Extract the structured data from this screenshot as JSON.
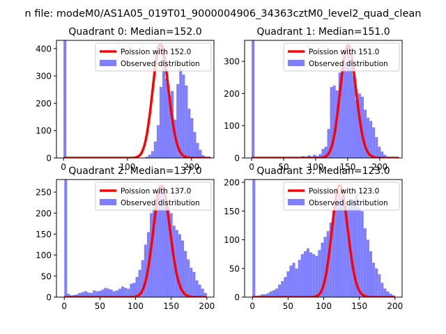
{
  "figure_title": "n file: modeM0/AS1A05_019T01_9000004906_34363cztM0_level2_quad_clean",
  "colors": {
    "histogram": "#8080ff",
    "poisson": "#ff0000",
    "axes": "#000000",
    "background": "#ffffff"
  },
  "chart_data": [
    {
      "type": "bar",
      "title": "Quadrant 0: Median=152.0",
      "xlabel": "",
      "ylabel": "",
      "xlim": [
        -11,
        235
      ],
      "ylim": [
        0,
        430
      ],
      "xticks": [
        0,
        100,
        200
      ],
      "yticks": [
        0,
        100,
        200,
        300,
        400
      ],
      "grid": false,
      "legend": {
        "placement": "upper-right",
        "entries": [
          "Poission with 152.0",
          "Observed distribution"
        ]
      },
      "series": [
        {
          "name": "Observed distribution",
          "kind": "histogram",
          "bin_width": 4.4,
          "bins": [
            [
              0,
              430
            ],
            [
              128,
              5
            ],
            [
              132.4,
              12
            ],
            [
              136.8,
              25
            ],
            [
              141.2,
              60
            ],
            [
              145.6,
              120
            ],
            [
              150,
              260
            ],
            [
              154.4,
              395
            ],
            [
              158.8,
              290
            ],
            [
              163.2,
              230
            ],
            [
              167.6,
              245
            ],
            [
              172,
              140
            ],
            [
              176.4,
              270
            ],
            [
              180.8,
              330
            ],
            [
              185.2,
              305
            ],
            [
              189.6,
              265
            ],
            [
              194,
              180
            ],
            [
              198.4,
              145
            ],
            [
              202.8,
              95
            ],
            [
              207.2,
              55
            ],
            [
              211.6,
              30
            ],
            [
              216,
              10
            ]
          ]
        },
        {
          "name": "Poission with 152.0",
          "kind": "poisson",
          "lambda": 152.0,
          "peak": 415,
          "x_range": [
            0,
            230
          ]
        }
      ]
    },
    {
      "type": "bar",
      "title": "Quadrant 1: Median=151.0",
      "xlabel": "",
      "ylabel": "",
      "xlim": [
        -11,
        235
      ],
      "ylim": [
        0,
        365
      ],
      "xticks": [
        0,
        50,
        100,
        150,
        200
      ],
      "yticks": [
        0,
        100,
        200,
        300
      ],
      "grid": false,
      "legend": {
        "placement": "upper-right",
        "entries": [
          "Poission with 151.0",
          "Observed distribution"
        ]
      },
      "series": [
        {
          "name": "Observed distribution",
          "kind": "histogram",
          "bin_width": 4.4,
          "bins": [
            [
              0,
              365
            ],
            [
              74,
              3
            ],
            [
              78.4,
              6
            ],
            [
              82.8,
              3
            ],
            [
              87.2,
              8
            ],
            [
              91.6,
              5
            ],
            [
              96,
              10
            ],
            [
              100.4,
              6
            ],
            [
              104.8,
              12
            ],
            [
              109.2,
              28
            ],
            [
              113.6,
              35
            ],
            [
              118,
              90
            ],
            [
              122.4,
              220
            ],
            [
              126.8,
              225
            ],
            [
              131.2,
              210
            ],
            [
              135.6,
              265
            ],
            [
              140,
              285
            ],
            [
              144.4,
              300
            ],
            [
              148.8,
              330
            ],
            [
              153.2,
              285
            ],
            [
              157.6,
              255
            ],
            [
              162,
              180
            ],
            [
              166.4,
              200
            ],
            [
              170.8,
              190
            ],
            [
              175.2,
              150
            ],
            [
              179.6,
              125
            ],
            [
              184,
              115
            ],
            [
              188.4,
              95
            ],
            [
              192.8,
              65
            ],
            [
              197.2,
              35
            ],
            [
              201.6,
              20
            ],
            [
              206,
              10
            ]
          ]
        },
        {
          "name": "Poission with 151.0",
          "kind": "poisson",
          "lambda": 151.0,
          "peak": 350,
          "x_range": [
            0,
            230
          ]
        }
      ]
    },
    {
      "type": "bar",
      "title": "Quadrant 2: Median=137.0",
      "xlabel": "",
      "ylabel": "",
      "xlim": [
        -11,
        210
      ],
      "ylim": [
        0,
        280
      ],
      "xticks": [
        0,
        50,
        100,
        150,
        200
      ],
      "yticks": [
        0,
        50,
        100,
        150,
        200,
        250
      ],
      "grid": false,
      "legend": {
        "placement": "upper-right",
        "entries": [
          "Poission with 137.0",
          "Observed distribution"
        ]
      },
      "series": [
        {
          "name": "Observed distribution",
          "kind": "histogram",
          "bin_width": 4.0,
          "bins": [
            [
              0,
              280
            ],
            [
              4,
              8
            ],
            [
              8,
              4
            ],
            [
              12,
              5
            ],
            [
              16,
              7
            ],
            [
              20,
              10
            ],
            [
              24,
              12
            ],
            [
              28,
              14
            ],
            [
              32,
              11
            ],
            [
              36,
              10
            ],
            [
              40,
              16
            ],
            [
              44,
              14
            ],
            [
              48,
              15
            ],
            [
              52,
              18
            ],
            [
              56,
              22
            ],
            [
              60,
              20
            ],
            [
              64,
              18
            ],
            [
              68,
              14
            ],
            [
              72,
              16
            ],
            [
              76,
              20
            ],
            [
              80,
              25
            ],
            [
              84,
              22
            ],
            [
              88,
              20
            ],
            [
              92,
              32
            ],
            [
              96,
              34
            ],
            [
              100,
              48
            ],
            [
              104,
              65
            ],
            [
              108,
              88
            ],
            [
              112,
              125
            ],
            [
              116,
              155
            ],
            [
              120,
              200
            ],
            [
              124,
              225
            ],
            [
              128,
              250
            ],
            [
              132,
              265
            ],
            [
              136,
              255
            ],
            [
              140,
              235
            ],
            [
              144,
              215
            ],
            [
              148,
              200
            ],
            [
              152,
              170
            ],
            [
              156,
              160
            ],
            [
              160,
              150
            ],
            [
              164,
              135
            ],
            [
              168,
              110
            ],
            [
              172,
              90
            ],
            [
              176,
              70
            ],
            [
              180,
              60
            ],
            [
              184,
              40
            ],
            [
              188,
              30
            ],
            [
              192,
              20
            ],
            [
              196,
              10
            ]
          ]
        },
        {
          "name": "Poission with 137.0",
          "kind": "poisson",
          "lambda": 137.0,
          "peak": 265,
          "x_range": [
            0,
            200
          ]
        }
      ]
    },
    {
      "type": "bar",
      "title": "Quadrant 3: Median=123.0",
      "xlabel": "",
      "ylabel": "",
      "xlim": [
        -11,
        210
      ],
      "ylim": [
        0,
        205
      ],
      "xticks": [
        0,
        50,
        100,
        150,
        200
      ],
      "yticks": [
        0,
        50,
        100,
        150,
        200
      ],
      "grid": false,
      "legend": {
        "placement": "upper-right",
        "entries": [
          "Poission with 123.0",
          "Observed distribution"
        ]
      },
      "series": [
        {
          "name": "Observed distribution",
          "kind": "histogram",
          "bin_width": 4.0,
          "bins": [
            [
              0,
              205
            ],
            [
              8,
              3
            ],
            [
              12,
              5
            ],
            [
              16,
              5
            ],
            [
              20,
              7
            ],
            [
              24,
              10
            ],
            [
              28,
              12
            ],
            [
              32,
              15
            ],
            [
              36,
              22
            ],
            [
              40,
              28
            ],
            [
              44,
              35
            ],
            [
              48,
              45
            ],
            [
              52,
              55
            ],
            [
              56,
              60
            ],
            [
              60,
              50
            ],
            [
              64,
              65
            ],
            [
              68,
              75
            ],
            [
              72,
              80
            ],
            [
              76,
              85
            ],
            [
              80,
              78
            ],
            [
              84,
              75
            ],
            [
              88,
              72
            ],
            [
              92,
              82
            ],
            [
              96,
              95
            ],
            [
              100,
              105
            ],
            [
              104,
              115
            ],
            [
              108,
              130
            ],
            [
              112,
              150
            ],
            [
              116,
              170
            ],
            [
              120,
              185
            ],
            [
              124,
              175
            ],
            [
              128,
              160
            ],
            [
              132,
              155
            ],
            [
              136,
              165
            ],
            [
              140,
              170
            ],
            [
              144,
              180
            ],
            [
              148,
              155
            ],
            [
              152,
              150
            ],
            [
              156,
              120
            ],
            [
              160,
              100
            ],
            [
              164,
              80
            ],
            [
              168,
              60
            ],
            [
              172,
              50
            ],
            [
              176,
              40
            ],
            [
              180,
              25
            ],
            [
              184,
              15
            ],
            [
              188,
              10
            ],
            [
              192,
              6
            ],
            [
              196,
              3
            ]
          ]
        },
        {
          "name": "Poission with 123.0",
          "kind": "poisson",
          "lambda": 123.0,
          "peak": 195,
          "x_range": [
            0,
            200
          ]
        }
      ]
    }
  ]
}
